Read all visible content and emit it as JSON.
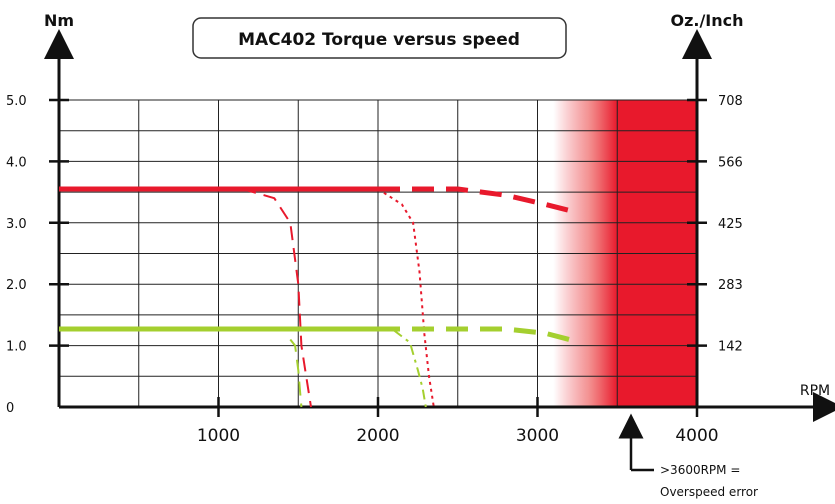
{
  "chart_data": {
    "type": "line",
    "title": "MAC402  Torque versus speed",
    "xlabel": "RPM",
    "ylabel_left": "Nm",
    "ylabel_right": "Oz./Inch",
    "xlim": [
      0,
      4000
    ],
    "ylim": [
      0,
      5
    ],
    "x_ticks": [
      1000,
      2000,
      3000,
      4000
    ],
    "x_tick_labels": [
      "1000",
      "2000",
      "3000",
      "4000"
    ],
    "y_ticks": [
      0,
      1,
      2,
      3,
      4,
      5
    ],
    "y_tick_labels": [
      "0",
      "1.0",
      "2.0",
      "3.0",
      "4.0",
      "5.0"
    ],
    "y2_tick_values": [
      1,
      2,
      3,
      4,
      5
    ],
    "y2_tick_labels": [
      "142",
      "283",
      "425",
      "566",
      "708"
    ],
    "grid": true,
    "overspeed_zone": {
      "start_rpm": 3100,
      "solid_rpm": 3500,
      "end_rpm": 4000
    },
    "annotation": {
      "x": 3600,
      "lines": [
        ">3600RPM =",
        "Overspeed error"
      ]
    },
    "series": [
      {
        "color": "#e8192c",
        "style": "solid",
        "width": 5,
        "x": [
          0,
          2000
        ],
        "y": [
          3.55,
          3.55
        ]
      },
      {
        "color": "#e8192c",
        "style": "dashed",
        "width": 5,
        "x": [
          2000,
          2500,
          2800,
          3050,
          3200
        ],
        "y": [
          3.55,
          3.55,
          3.45,
          3.3,
          3.2
        ]
      },
      {
        "color": "#e8192c",
        "style": "dashed",
        "width": 2,
        "x": [
          1150,
          1350,
          1450,
          1500,
          1520,
          1550,
          1580
        ],
        "y": [
          3.55,
          3.4,
          3.0,
          2.0,
          1.0,
          0.5,
          0
        ]
      },
      {
        "color": "#e8192c",
        "style": "dotted",
        "width": 2,
        "x": [
          2000,
          2150,
          2220,
          2260,
          2290,
          2320,
          2350
        ],
        "y": [
          3.55,
          3.3,
          3.0,
          2.2,
          1.2,
          0.5,
          0
        ]
      },
      {
        "color": "#a4cf2f",
        "style": "solid",
        "width": 5,
        "x": [
          0,
          2000
        ],
        "y": [
          1.27,
          1.27
        ]
      },
      {
        "color": "#a4cf2f",
        "style": "dashed",
        "width": 5,
        "x": [
          2000,
          2500,
          2800,
          3050,
          3200
        ],
        "y": [
          1.27,
          1.27,
          1.27,
          1.2,
          1.1
        ]
      },
      {
        "color": "#a4cf2f",
        "style": "dashed",
        "width": 2,
        "x": [
          1450,
          1480,
          1500,
          1510,
          1520
        ],
        "y": [
          1.1,
          1.0,
          0.6,
          0.3,
          0
        ]
      },
      {
        "color": "#a4cf2f",
        "style": "dashdot",
        "width": 2,
        "x": [
          2100,
          2200,
          2250,
          2280,
          2300
        ],
        "y": [
          1.25,
          1.05,
          0.6,
          0.3,
          0
        ]
      }
    ]
  }
}
